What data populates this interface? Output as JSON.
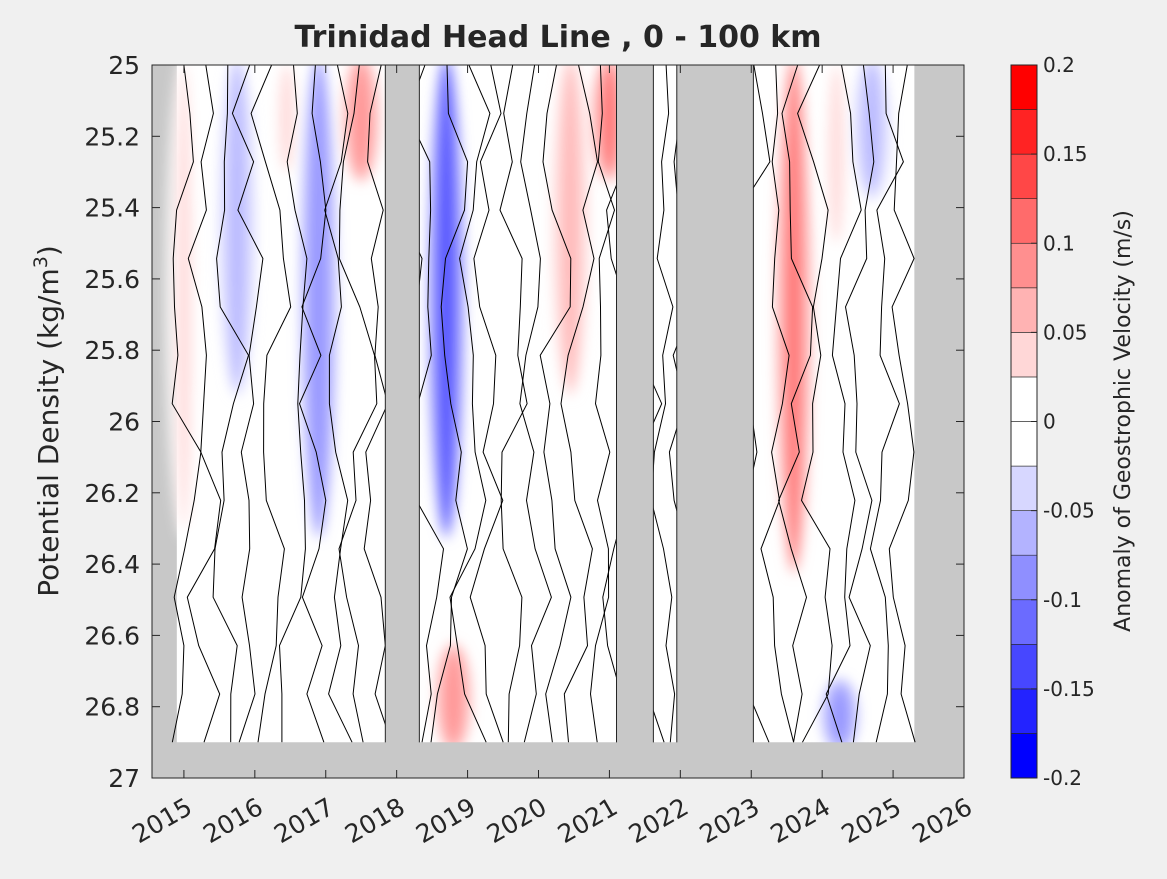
{
  "figure": {
    "title": "Trinidad Head Line , 0 - 100 km",
    "ylabel_main": "Potential Density (kg/m",
    "ylabel_sup": "3",
    "ylabel_close": ")",
    "colorbar_label": "Anomaly of Geostrophic Velocity (m/s)"
  },
  "colors": {
    "background": "#f0f0f0",
    "nodata": "#c8c8c8",
    "contour": "#000000",
    "colormap": [
      "#0000ff",
      "#2323ff",
      "#4747ff",
      "#6b6bff",
      "#8f8fff",
      "#b3b3ff",
      "#d7d7ff",
      "#ffffff",
      "#ffffff",
      "#ffd7d7",
      "#ffb3b3",
      "#ff8f8f",
      "#ff6b6b",
      "#ff4747",
      "#ff2323",
      "#ff0000"
    ]
  },
  "chart_data": {
    "type": "heatmap",
    "title": "Trinidad Head Line , 0 - 100 km",
    "xlabel": "",
    "ylabel": "Potential Density (kg/m3)",
    "colorbar_label": "Anomaly of Geostrophic Velocity (m/s)",
    "xlim": [
      2014.55,
      2026.0
    ],
    "ylim": [
      25,
      27
    ],
    "y_reversed": true,
    "x_ticks": [
      "2015",
      "2016",
      "2017",
      "2018",
      "2019",
      "2020",
      "2021",
      "2022",
      "2023",
      "2024",
      "2025",
      "2026"
    ],
    "y_ticks": [
      "25",
      "25.2",
      "25.4",
      "25.6",
      "25.8",
      "26",
      "26.2",
      "26.4",
      "26.6",
      "26.8",
      "27"
    ],
    "colorbar_ticks": [
      "-0.2",
      "-0.15",
      "-0.1",
      "-0.05",
      "0",
      "0.05",
      "0.1",
      "0.15",
      "0.2"
    ],
    "clim": [
      -0.2,
      0.2
    ],
    "data_coverage": {
      "first_year": 2014.9,
      "last_year": 2025.3,
      "max_density": 26.9,
      "gaps_years": [
        [
          2017.84,
          2018.32
        ],
        [
          2021.1,
          2021.62
        ],
        [
          2021.95,
          2023.03
        ]
      ]
    },
    "anomaly_features": [
      {
        "year": 2015.0,
        "density": [
          25.0,
          26.3
        ],
        "value": 0.04
      },
      {
        "year": 2015.75,
        "density": [
          25.0,
          25.9
        ],
        "value": -0.07
      },
      {
        "year": 2016.45,
        "density": [
          25.0,
          25.3
        ],
        "value": 0.04
      },
      {
        "year": 2016.9,
        "density": [
          25.0,
          26.3
        ],
        "value": -0.09
      },
      {
        "year": 2017.5,
        "density": [
          25.0,
          25.3
        ],
        "value": 0.09
      },
      {
        "year": 2018.7,
        "density": [
          25.0,
          26.3
        ],
        "value": -0.15
      },
      {
        "year": 2018.8,
        "density": [
          26.65,
          26.9
        ],
        "value": 0.09
      },
      {
        "year": 2020.45,
        "density": [
          25.0,
          25.9
        ],
        "value": 0.06
      },
      {
        "year": 2021.0,
        "density": [
          25.0,
          25.3
        ],
        "value": 0.12
      },
      {
        "year": 2023.6,
        "density": [
          25.0,
          26.4
        ],
        "value": 0.1
      },
      {
        "year": 2024.2,
        "density": [
          25.0,
          25.5
        ],
        "value": 0.04
      },
      {
        "year": 2024.7,
        "density": [
          25.0,
          25.35
        ],
        "value": -0.06
      },
      {
        "year": 2024.25,
        "density": [
          26.75,
          26.9
        ],
        "value": -0.1
      }
    ]
  }
}
